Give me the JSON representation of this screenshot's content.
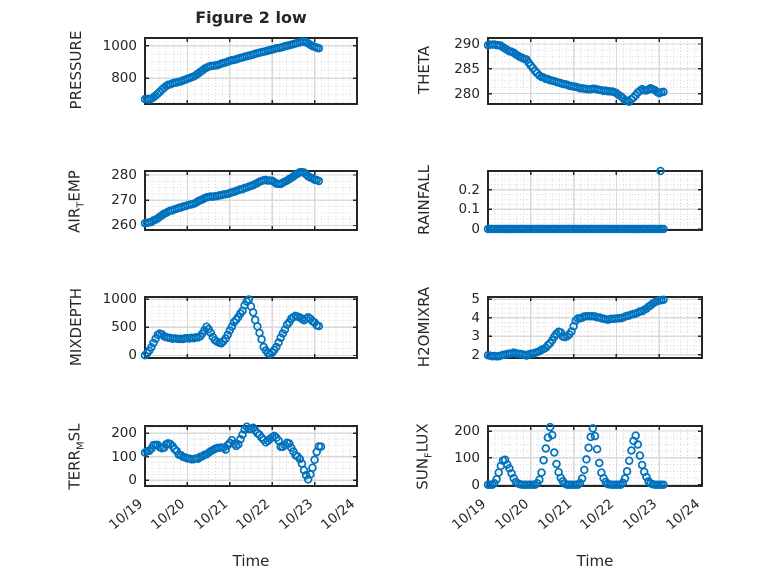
{
  "figure": {
    "title": "Figure 2 low",
    "xlabel": "Time",
    "marker_color": "#0072BD",
    "axis_color": "#262626",
    "grid_color": "#d9d9d9",
    "minor_grid_color": "#d8d8d8",
    "text_color": "#262626",
    "background": "#ffffff"
  },
  "x_axis": {
    "label": "Time",
    "tick_labels": [
      "10/19",
      "10/20",
      "10/21",
      "10/22",
      "10/23",
      "10/24"
    ],
    "range_days": [
      0,
      5
    ],
    "minor_per_day": 6
  },
  "chart_data": [
    {
      "type": "scatter",
      "name": "pressure",
      "ylabel_segments": [
        {
          "t": "PRESSURE",
          "sub": false
        }
      ],
      "ytick_labels": [
        "800",
        "1000"
      ],
      "yticks": [
        800,
        1000
      ],
      "ylim": [
        640,
        1048
      ],
      "points": [
        [
          0,
          672
        ],
        [
          0.12,
          668
        ],
        [
          0.22,
          685
        ],
        [
          0.32,
          708
        ],
        [
          0.42,
          735
        ],
        [
          0.55,
          758
        ],
        [
          0.7,
          770
        ],
        [
          0.85,
          780
        ],
        [
          1.0,
          795
        ],
        [
          1.15,
          810
        ],
        [
          1.3,
          838
        ],
        [
          1.42,
          862
        ],
        [
          1.55,
          874
        ],
        [
          1.7,
          880
        ],
        [
          1.85,
          892
        ],
        [
          2.0,
          906
        ],
        [
          2.2,
          920
        ],
        [
          2.4,
          936
        ],
        [
          2.6,
          950
        ],
        [
          2.8,
          963
        ],
        [
          3.0,
          978
        ],
        [
          3.2,
          990
        ],
        [
          3.4,
          1003
        ],
        [
          3.6,
          1018
        ],
        [
          3.72,
          1028
        ],
        [
          3.8,
          1022
        ],
        [
          3.9,
          1006
        ],
        [
          4.0,
          992
        ],
        [
          4.12,
          985
        ]
      ],
      "outliers": [],
      "jitter": 3
    },
    {
      "type": "scatter",
      "name": "theta",
      "ylabel_segments": [
        {
          "t": "THETA",
          "sub": false
        }
      ],
      "ytick_labels": [
        "280",
        "285",
        "290"
      ],
      "yticks": [
        280,
        285,
        290
      ],
      "ylim": [
        277.9,
        291.2
      ],
      "points": [
        [
          0,
          289.8
        ],
        [
          0.15,
          289.9
        ],
        [
          0.3,
          289.6
        ],
        [
          0.45,
          288.8
        ],
        [
          0.6,
          288.2
        ],
        [
          0.7,
          287.6
        ],
        [
          0.8,
          287.2
        ],
        [
          0.9,
          286.8
        ],
        [
          1.0,
          285.6
        ],
        [
          1.1,
          284.6
        ],
        [
          1.2,
          283.6
        ],
        [
          1.35,
          283
        ],
        [
          1.5,
          282.6
        ],
        [
          1.7,
          282.1
        ],
        [
          1.9,
          281.6
        ],
        [
          2.1,
          281.2
        ],
        [
          2.3,
          280.9
        ],
        [
          2.5,
          280.9
        ],
        [
          2.7,
          280.6
        ],
        [
          2.9,
          280.4
        ],
        [
          3.0,
          280.1
        ],
        [
          3.1,
          279.4
        ],
        [
          3.2,
          278.7
        ],
        [
          3.3,
          278.4
        ],
        [
          3.4,
          279.2
        ],
        [
          3.5,
          280.2
        ],
        [
          3.6,
          280.9
        ],
        [
          3.7,
          280.6
        ],
        [
          3.8,
          281.1
        ],
        [
          3.9,
          280.6
        ],
        [
          4.0,
          280.1
        ],
        [
          4.12,
          280.4
        ]
      ],
      "outliers": [],
      "jitter": 0.12
    },
    {
      "type": "scatter",
      "name": "air_temp",
      "ylabel_segments": [
        {
          "t": "AIR",
          "sub": false
        },
        {
          "t": "T",
          "sub": true
        },
        {
          "t": "EMP",
          "sub": false
        }
      ],
      "ytick_labels": [
        "260",
        "270",
        "280"
      ],
      "yticks": [
        260,
        270,
        280
      ],
      "ylim": [
        258.2,
        281.6
      ],
      "points": [
        [
          0,
          261
        ],
        [
          0.15,
          261.4
        ],
        [
          0.3,
          262.8
        ],
        [
          0.45,
          264.6
        ],
        [
          0.6,
          265.8
        ],
        [
          0.75,
          266.6
        ],
        [
          0.9,
          267.4
        ],
        [
          1.05,
          268.2
        ],
        [
          1.2,
          269
        ],
        [
          1.35,
          270.4
        ],
        [
          1.5,
          271.4
        ],
        [
          1.65,
          271.6
        ],
        [
          1.8,
          272
        ],
        [
          1.95,
          272.6
        ],
        [
          2.1,
          273.4
        ],
        [
          2.25,
          274.2
        ],
        [
          2.4,
          275
        ],
        [
          2.55,
          276
        ],
        [
          2.7,
          277.4
        ],
        [
          2.85,
          278
        ],
        [
          3.0,
          277.6
        ],
        [
          3.1,
          276.6
        ],
        [
          3.2,
          276.4
        ],
        [
          3.3,
          277.4
        ],
        [
          3.45,
          278.8
        ],
        [
          3.55,
          280
        ],
        [
          3.65,
          281
        ],
        [
          3.72,
          281.3
        ],
        [
          3.8,
          280.2
        ],
        [
          3.9,
          279
        ],
        [
          4.0,
          278.2
        ],
        [
          4.12,
          277.6
        ]
      ],
      "outliers": [],
      "jitter": 0.25
    },
    {
      "type": "scatter",
      "name": "rainfall",
      "ylabel_segments": [
        {
          "t": "RAINFALL",
          "sub": false
        }
      ],
      "ytick_labels": [
        "0",
        "0.1",
        "0.2"
      ],
      "yticks": [
        0,
        0.1,
        0.2
      ],
      "ylim": [
        -0.005,
        0.295
      ],
      "points": [
        [
          0,
          0
        ],
        [
          4.12,
          0
        ]
      ],
      "outliers": [
        [
          4.03,
          0.295
        ]
      ],
      "jitter": 0
    },
    {
      "type": "scatter",
      "name": "mixdepth",
      "ylabel_segments": [
        {
          "t": "MIXDEPTH",
          "sub": false
        }
      ],
      "ytick_labels": [
        "0",
        "500",
        "1000"
      ],
      "yticks": [
        0,
        500,
        1000
      ],
      "ylim": [
        -45,
        1040
      ],
      "points": [
        [
          0,
          10
        ],
        [
          0.06,
          40
        ],
        [
          0.12,
          110
        ],
        [
          0.18,
          200
        ],
        [
          0.25,
          300
        ],
        [
          0.32,
          380
        ],
        [
          0.38,
          400
        ],
        [
          0.45,
          340
        ],
        [
          0.55,
          310
        ],
        [
          0.7,
          305
        ],
        [
          0.85,
          295
        ],
        [
          1.0,
          300
        ],
        [
          1.15,
          308
        ],
        [
          1.3,
          330
        ],
        [
          1.38,
          420
        ],
        [
          1.45,
          510
        ],
        [
          1.52,
          460
        ],
        [
          1.6,
          320
        ],
        [
          1.7,
          240
        ],
        [
          1.8,
          210
        ],
        [
          1.9,
          300
        ],
        [
          2.0,
          440
        ],
        [
          2.1,
          590
        ],
        [
          2.2,
          690
        ],
        [
          2.3,
          790
        ],
        [
          2.38,
          950
        ],
        [
          2.45,
          1000
        ],
        [
          2.5,
          880
        ],
        [
          2.58,
          690
        ],
        [
          2.65,
          520
        ],
        [
          2.72,
          360
        ],
        [
          2.8,
          160
        ],
        [
          2.88,
          40
        ],
        [
          2.95,
          15
        ],
        [
          3.05,
          90
        ],
        [
          3.15,
          230
        ],
        [
          3.25,
          390
        ],
        [
          3.35,
          540
        ],
        [
          3.45,
          650
        ],
        [
          3.55,
          710
        ],
        [
          3.65,
          670
        ],
        [
          3.75,
          630
        ],
        [
          3.85,
          685
        ],
        [
          3.95,
          615
        ],
        [
          4.05,
          545
        ],
        [
          4.12,
          520
        ]
      ],
      "outliers": [],
      "jitter": 18
    },
    {
      "type": "scatter",
      "name": "h2omixra",
      "ylabel_segments": [
        {
          "t": "H2OMIXRA",
          "sub": false
        }
      ],
      "ytick_labels": [
        "2",
        "3",
        "4",
        "5"
      ],
      "yticks": [
        2,
        3,
        4,
        5
      ],
      "ylim": [
        1.83,
        5.12
      ],
      "points": [
        [
          0,
          2
        ],
        [
          0.15,
          1.92
        ],
        [
          0.3,
          1.95
        ],
        [
          0.45,
          2.02
        ],
        [
          0.6,
          2.1
        ],
        [
          0.75,
          2.04
        ],
        [
          0.9,
          1.98
        ],
        [
          1.05,
          2.06
        ],
        [
          1.2,
          2.18
        ],
        [
          1.35,
          2.4
        ],
        [
          1.45,
          2.6
        ],
        [
          1.55,
          2.95
        ],
        [
          1.62,
          3.2
        ],
        [
          1.68,
          3.28
        ],
        [
          1.75,
          3
        ],
        [
          1.82,
          2.92
        ],
        [
          1.9,
          3.08
        ],
        [
          1.97,
          3.35
        ],
        [
          2.02,
          3.7
        ],
        [
          2.08,
          3.95
        ],
        [
          2.2,
          4.02
        ],
        [
          2.35,
          4.1
        ],
        [
          2.5,
          4.05
        ],
        [
          2.65,
          3.98
        ],
        [
          2.8,
          3.9
        ],
        [
          2.95,
          3.96
        ],
        [
          3.1,
          4
        ],
        [
          3.25,
          4.08
        ],
        [
          3.4,
          4.18
        ],
        [
          3.55,
          4.32
        ],
        [
          3.7,
          4.5
        ],
        [
          3.8,
          4.68
        ],
        [
          3.9,
          4.82
        ],
        [
          4.0,
          4.92
        ],
        [
          4.12,
          5
        ]
      ],
      "outliers": [],
      "jitter": 0.05
    },
    {
      "type": "scatter",
      "name": "terr_msl",
      "ylabel_segments": [
        {
          "t": "TERR",
          "sub": false
        },
        {
          "t": "M",
          "sub": true
        },
        {
          "t": "SL",
          "sub": false
        }
      ],
      "ytick_labels": [
        "0",
        "100",
        "200"
      ],
      "yticks": [
        0,
        100,
        200
      ],
      "ylim": [
        -24,
        231
      ],
      "points": [
        [
          0,
          115
        ],
        [
          0.1,
          128
        ],
        [
          0.2,
          148
        ],
        [
          0.28,
          156
        ],
        [
          0.35,
          143
        ],
        [
          0.42,
          132
        ],
        [
          0.5,
          152
        ],
        [
          0.58,
          157
        ],
        [
          0.68,
          137
        ],
        [
          0.8,
          110
        ],
        [
          0.92,
          96
        ],
        [
          1.05,
          90
        ],
        [
          1.2,
          92
        ],
        [
          1.35,
          100
        ],
        [
          1.5,
          118
        ],
        [
          1.6,
          128
        ],
        [
          1.72,
          142
        ],
        [
          1.8,
          137
        ],
        [
          1.9,
          133
        ],
        [
          2.0,
          160
        ],
        [
          2.05,
          172
        ],
        [
          2.12,
          146
        ],
        [
          2.2,
          150
        ],
        [
          2.3,
          196
        ],
        [
          2.38,
          228
        ],
        [
          2.45,
          218
        ],
        [
          2.55,
          222
        ],
        [
          2.65,
          200
        ],
        [
          2.75,
          182
        ],
        [
          2.85,
          163
        ],
        [
          2.95,
          176
        ],
        [
          3.05,
          188
        ],
        [
          3.15,
          170
        ],
        [
          3.22,
          135
        ],
        [
          3.3,
          150
        ],
        [
          3.38,
          163
        ],
        [
          3.45,
          140
        ],
        [
          3.55,
          108
        ],
        [
          3.62,
          98
        ],
        [
          3.7,
          72
        ],
        [
          3.78,
          28
        ],
        [
          3.85,
          2
        ],
        [
          3.92,
          35
        ],
        [
          4.0,
          90
        ],
        [
          4.06,
          125
        ],
        [
          4.12,
          158
        ],
        [
          4.18,
          135
        ]
      ],
      "outliers": [],
      "jitter": 6
    },
    {
      "type": "scatter",
      "name": "sun_flux",
      "ylabel_segments": [
        {
          "t": "SUN",
          "sub": false
        },
        {
          "t": "F",
          "sub": true
        },
        {
          "t": "LUX",
          "sub": false
        }
      ],
      "ytick_labels": [
        "0",
        "100",
        "200"
      ],
      "yticks": [
        0,
        100,
        200
      ],
      "ylim": [
        -5,
        219
      ],
      "points": [
        [
          0,
          0
        ],
        [
          0.12,
          0
        ],
        [
          0.18,
          10
        ],
        [
          0.25,
          45
        ],
        [
          0.32,
          80
        ],
        [
          0.38,
          100
        ],
        [
          0.45,
          75
        ],
        [
          0.52,
          55
        ],
        [
          0.58,
          30
        ],
        [
          0.65,
          10
        ],
        [
          0.72,
          2
        ],
        [
          0.8,
          0
        ],
        [
          1.1,
          0
        ],
        [
          1.18,
          8
        ],
        [
          1.25,
          45
        ],
        [
          1.32,
          110
        ],
        [
          1.38,
          160
        ],
        [
          1.45,
          215
        ],
        [
          1.5,
          185
        ],
        [
          1.55,
          120
        ],
        [
          1.62,
          60
        ],
        [
          1.7,
          25
        ],
        [
          1.78,
          5
        ],
        [
          1.85,
          0
        ],
        [
          2.1,
          0
        ],
        [
          2.18,
          10
        ],
        [
          2.25,
          55
        ],
        [
          2.32,
          110
        ],
        [
          2.38,
          165
        ],
        [
          2.45,
          210
        ],
        [
          2.52,
          170
        ],
        [
          2.58,
          95
        ],
        [
          2.65,
          45
        ],
        [
          2.72,
          15
        ],
        [
          2.8,
          2
        ],
        [
          2.88,
          0
        ],
        [
          3.1,
          0
        ],
        [
          3.18,
          12
        ],
        [
          3.25,
          50
        ],
        [
          3.32,
          105
        ],
        [
          3.38,
          150
        ],
        [
          3.44,
          190
        ],
        [
          3.5,
          150
        ],
        [
          3.56,
          100
        ],
        [
          3.62,
          60
        ],
        [
          3.68,
          35
        ],
        [
          3.75,
          12
        ],
        [
          3.82,
          2
        ],
        [
          3.9,
          0
        ],
        [
          4.12,
          0
        ]
      ],
      "outliers": [],
      "jitter": 0
    }
  ]
}
